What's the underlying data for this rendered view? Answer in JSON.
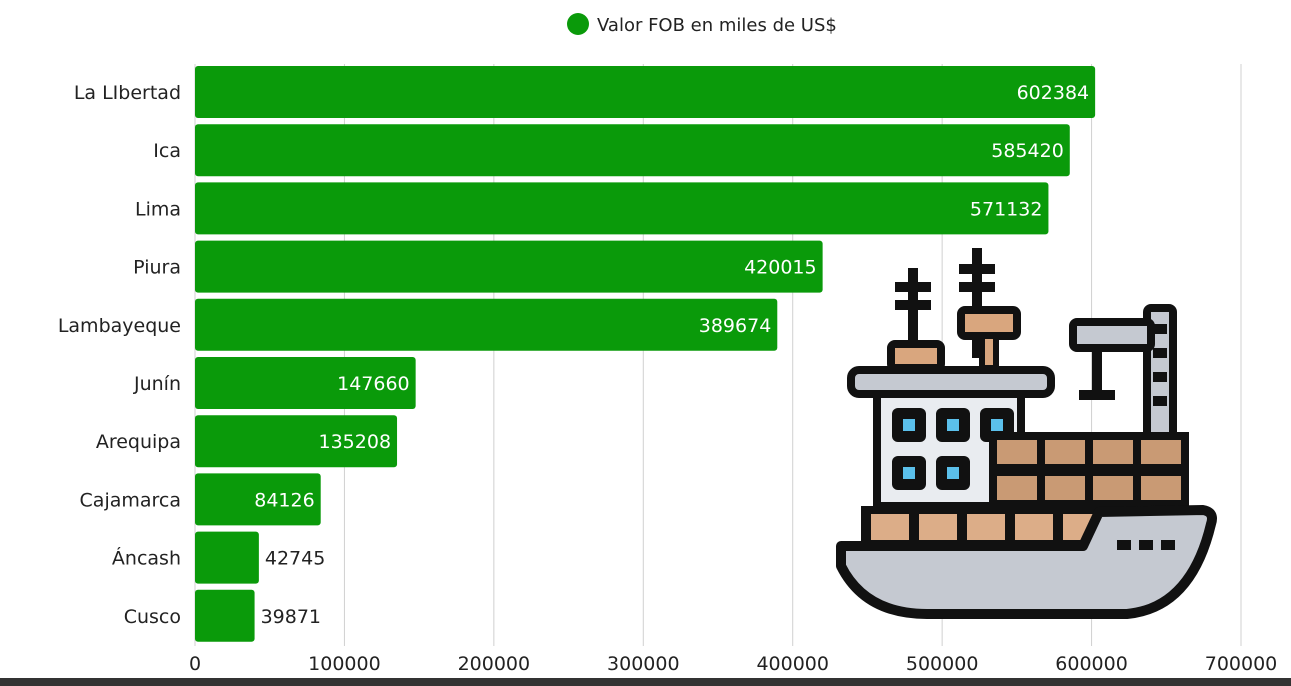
{
  "chart_data": {
    "type": "bar",
    "orientation": "horizontal",
    "categories": [
      "La LIbertad",
      "Ica",
      "Lima",
      "Piura",
      "Lambayeque",
      "Junín",
      "Arequipa",
      "Cajamarca",
      "Áncash",
      "Cusco"
    ],
    "series": [
      {
        "name": "Valor  FOB en miles de US$",
        "values": [
          602384,
          585420,
          571132,
          420015,
          389674,
          147660,
          135208,
          84126,
          42745,
          39871
        ],
        "color": "#0a9a0a"
      }
    ],
    "xlim": [
      0,
      700000
    ],
    "xticks": [
      "0",
      "100000",
      "200000",
      "300000",
      "400000",
      "500000",
      "600000",
      "700000"
    ],
    "grid": "vertical",
    "legend_position": "top-center",
    "data_labels": true,
    "decoration_icon": "cargo-ship-icon"
  }
}
